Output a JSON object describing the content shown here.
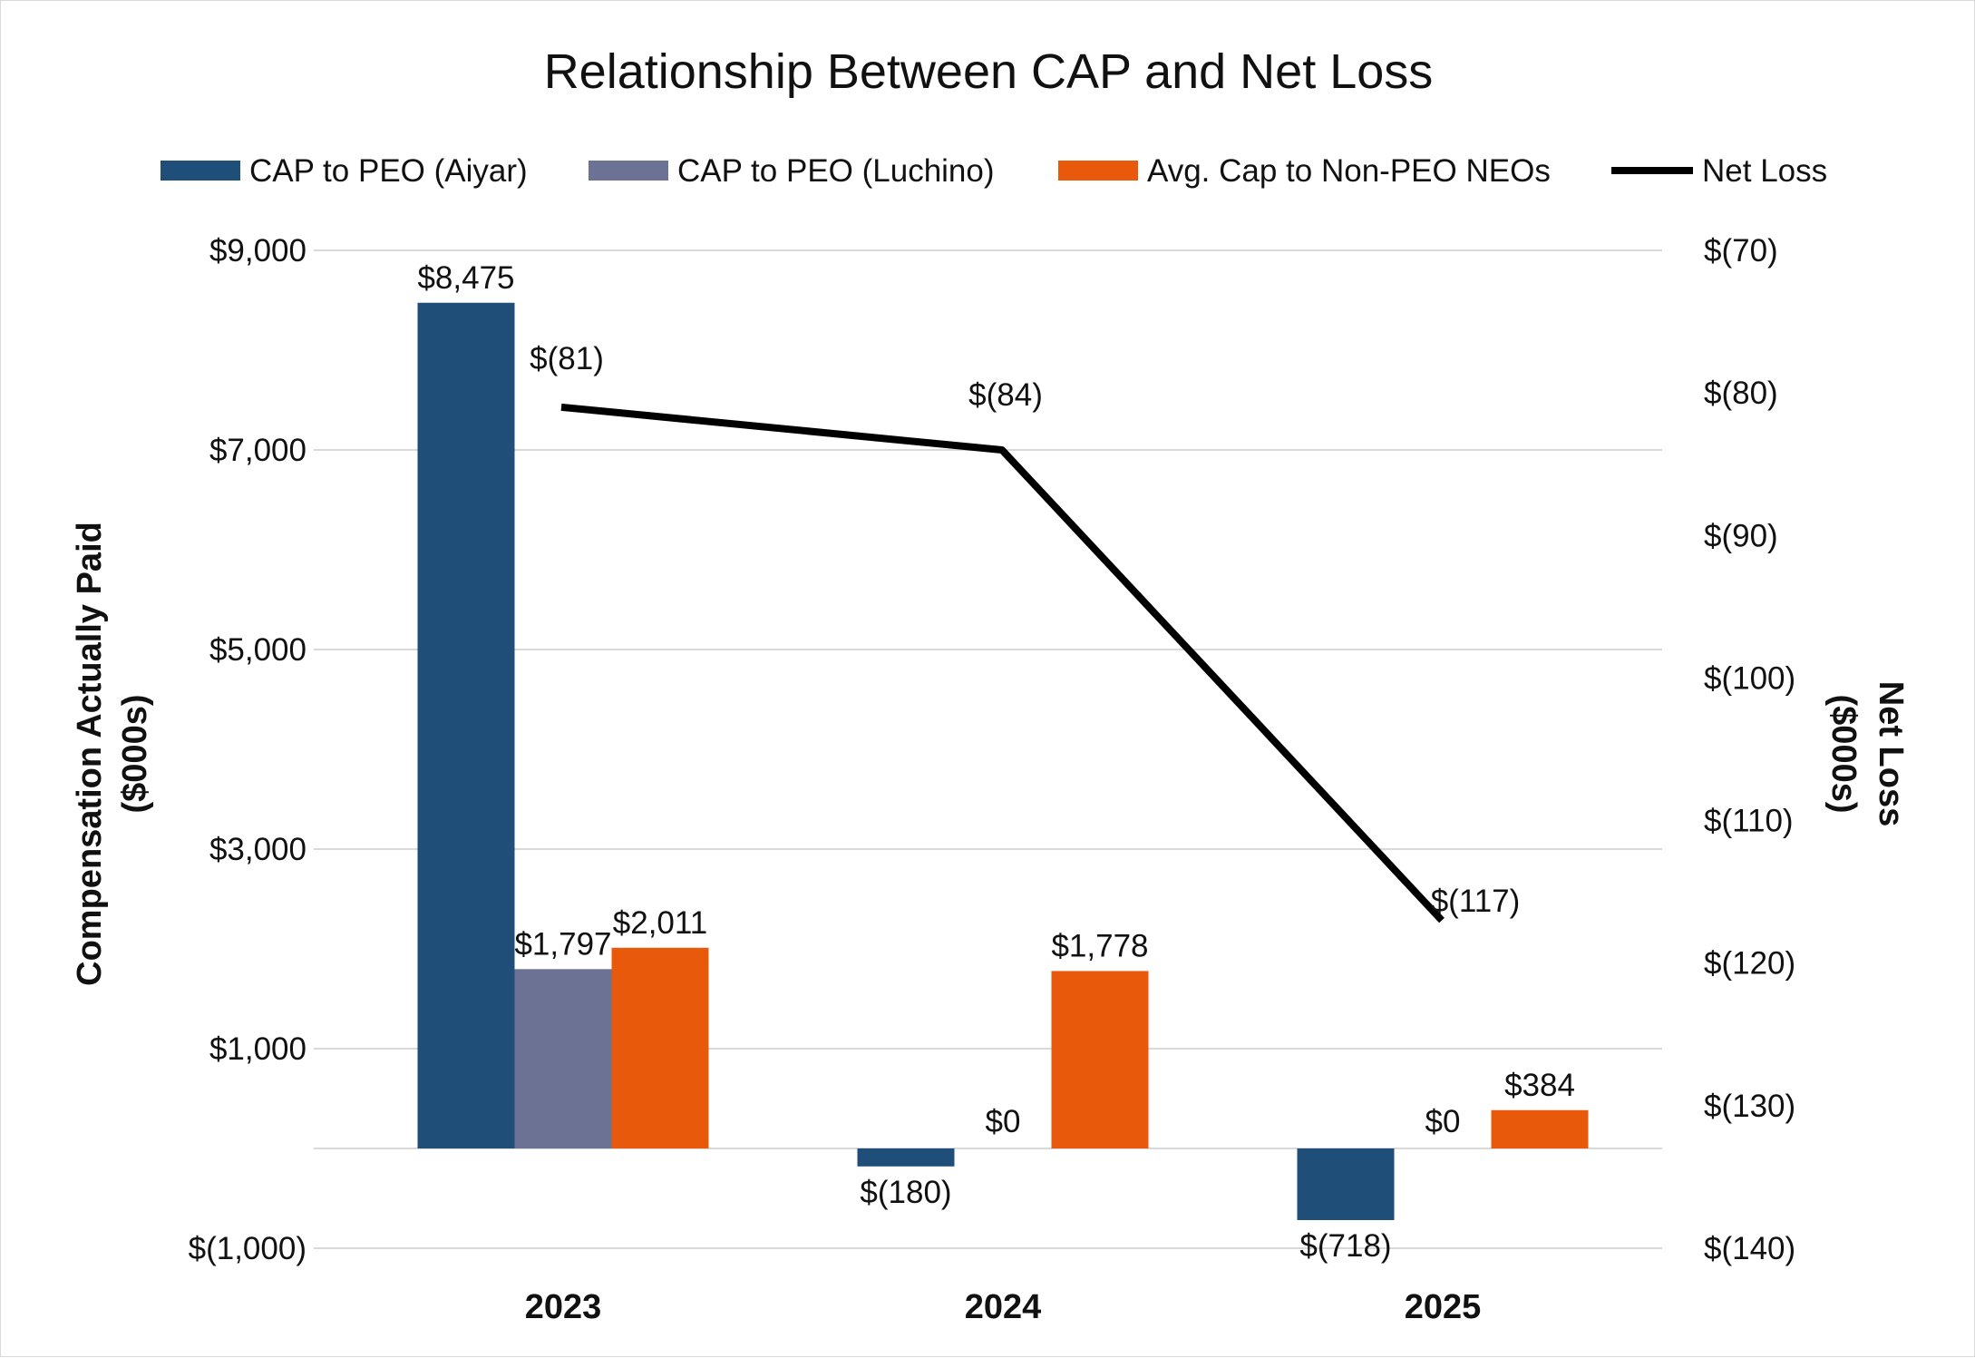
{
  "chart_data": {
    "type": "bar",
    "title": "Relationship Between CAP and Net Loss",
    "categories": [
      "2023",
      "2024",
      "2025"
    ],
    "series": [
      {
        "name": "CAP to PEO (Aiyar)",
        "type": "bar",
        "axis": "left",
        "color": "#1f4e79",
        "values": [
          8475,
          -180,
          -718
        ],
        "labels": [
          "$8,475",
          "$(180)",
          "$(718)"
        ]
      },
      {
        "name": "CAP to PEO (Luchino)",
        "type": "bar",
        "axis": "left",
        "color": "#6b7294",
        "values": [
          1797,
          0,
          0
        ],
        "labels": [
          "$1,797",
          "$0",
          "$0"
        ]
      },
      {
        "name": "Avg. Cap to Non-PEO NEOs",
        "type": "bar",
        "axis": "left",
        "color": "#e8590c",
        "values": [
          2011,
          1778,
          384
        ],
        "labels": [
          "$2,011",
          "$1,778",
          "$384"
        ]
      },
      {
        "name": "Net Loss",
        "type": "line",
        "axis": "right",
        "color": "#000000",
        "values": [
          -81,
          -84,
          -117
        ],
        "labels": [
          "$(81)",
          "$(84)",
          "$(117)"
        ]
      }
    ],
    "y_left": {
      "label_line1": "Compensation Actually Paid",
      "label_line2": "($000s)",
      "min": -1000,
      "max": 9000,
      "ticks": [
        -1000,
        1000,
        3000,
        5000,
        7000,
        9000
      ],
      "tick_labels": [
        "$(1,000)",
        "$1,000",
        "$3,000",
        "$5,000",
        "$7,000",
        "$9,000"
      ]
    },
    "y_right": {
      "label_line1": "Net Loss",
      "label_line2": "($000s)",
      "min": -140,
      "max": -70,
      "ticks": [
        -140,
        -130,
        -120,
        -110,
        -100,
        -90,
        -80,
        -70
      ],
      "tick_labels": [
        "$(140)",
        "$(130)",
        "$(120)",
        "$(110)",
        "$(100)",
        "$(90)",
        "$(80)",
        "$(70)"
      ]
    },
    "grid": true,
    "legend_position": "top"
  }
}
